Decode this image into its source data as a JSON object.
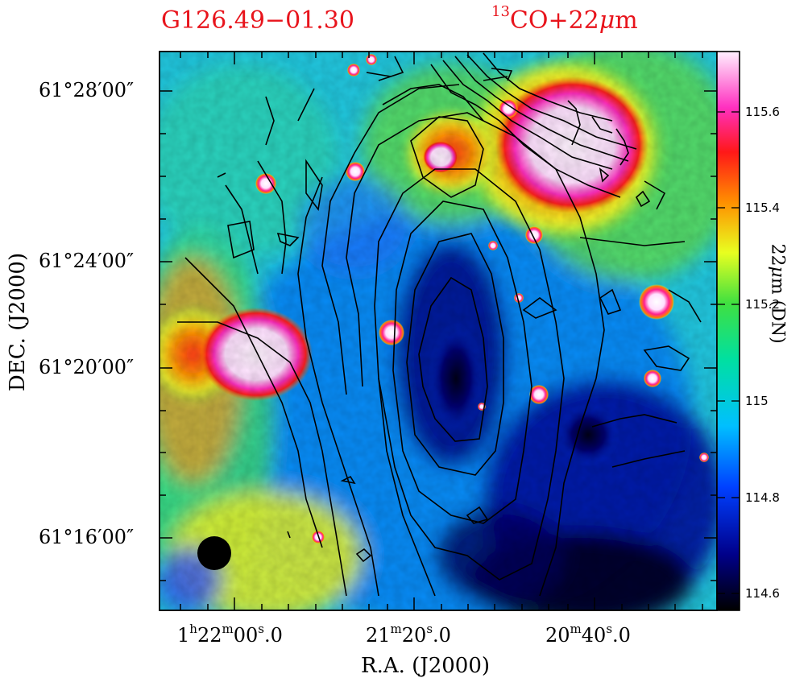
{
  "figure": {
    "source_name": "G126.49−01.30",
    "tracer": {
      "iso": "13",
      "rest": "CO+22",
      "unit": "m"
    },
    "xlabel": "R.A. (J2000)",
    "ylabel": "DEC. (J2000)",
    "dec_ticks": [
      {
        "label": "61°28′00″"
      },
      {
        "label": "61°24′00″"
      },
      {
        "label": "61°20′00″"
      },
      {
        "label": "61°16′00″"
      }
    ],
    "ra_ticks": [
      {
        "h": "1",
        "hs": "h",
        "m": "22",
        "ms": "m",
        "s": "00",
        "ss": "s",
        "frac": ".0"
      },
      {
        "m": "21",
        "ms": "m",
        "s": "20",
        "ss": "s",
        "frac": ".0"
      },
      {
        "m": "20",
        "ms": "m",
        "s": "40",
        "ss": "s",
        "frac": ".0"
      }
    ],
    "colorbar": {
      "label_main": "22",
      "label_unit": "m (DN)",
      "ticks": [
        "115.6",
        "115.4",
        "115.2",
        "115",
        "114.8",
        "114.6"
      ],
      "range": [
        114.57,
        115.72
      ]
    },
    "colors": {
      "title": "#e8141c",
      "contours": "#000000"
    }
  }
}
